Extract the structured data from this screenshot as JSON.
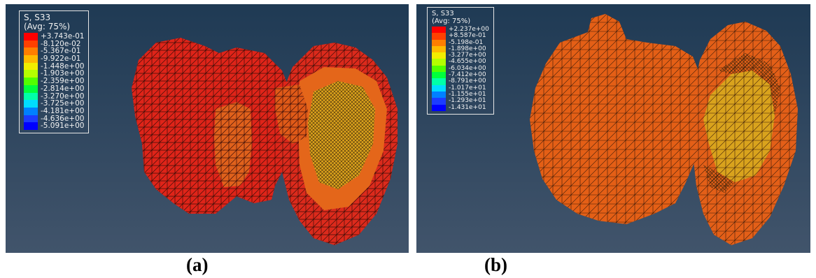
{
  "panels": [
    {
      "legend": {
        "title": "S, S33",
        "subtitle": "(Avg: 75%)",
        "values": [
          "+3.743e-01",
          "-8.120e-02",
          "-5.367e-01",
          "-9.922e-01",
          "-1.448e+00",
          "-1.903e+00",
          "-2.359e+00",
          "-2.814e+00",
          "-3.270e+00",
          "-3.725e+00",
          "-4.181e+00",
          "-4.636e+00",
          "-5.091e+00"
        ]
      },
      "caption": "(a)"
    },
    {
      "legend": {
        "title": "S, S33",
        "subtitle": "(Avg: 75%)",
        "values": [
          "+2.237e+00",
          "+8.587e-01",
          "-5.198e-01",
          "-1.898e+00",
          "-3.277e+00",
          "-4.655e+00",
          "-6.034e+00",
          "-7.412e+00",
          "-8.791e+00",
          "-1.017e+01",
          "-1.155e+01",
          "-1.293e+01",
          "-1.431e+01"
        ]
      },
      "caption": "(b)"
    }
  ],
  "colors": {
    "background_top": "#223c55",
    "background_bottom": "#3d5168",
    "mesh_red": "#e0251b",
    "mesh_orange": "#e85f14",
    "mesh_amber": "#dfa21a",
    "mesh_lines": "#3a1208",
    "scale": [
      "#ff0000",
      "#ff4000",
      "#ff7e00",
      "#ffba00",
      "#f2ee00",
      "#b4ff00",
      "#52ff00",
      "#00ff3c",
      "#00ffa8",
      "#00dcff",
      "#0080ff",
      "#1c3cff",
      "#0000ff"
    ]
  }
}
